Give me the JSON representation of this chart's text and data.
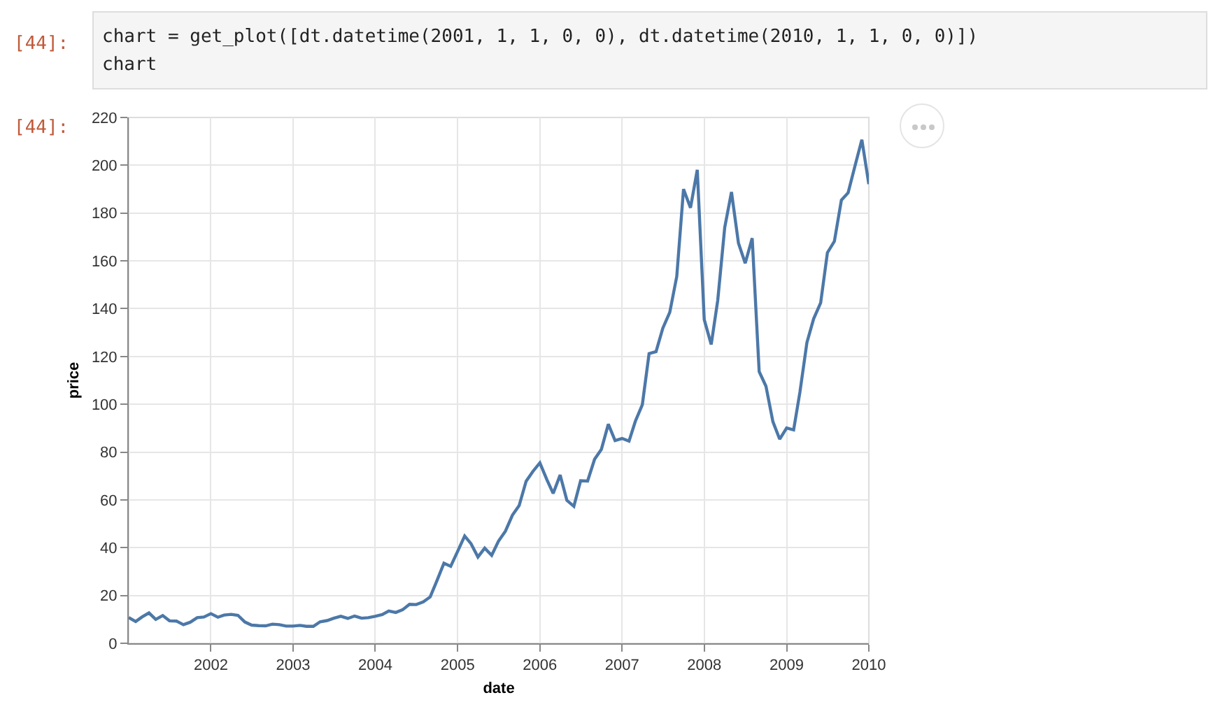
{
  "chart_data": {
    "type": "line",
    "xlabel": "date",
    "ylabel": "price",
    "annotations": [
      "[44]:",
      "chart = get_plot([dt.datetime(2001, 1, 1, 0, 0), dt.datetime(2010, 1, 1, 0, 0)])\nchart",
      "[44]:"
    ],
    "x": [
      "2001-01",
      "2001-02",
      "2001-03",
      "2001-04",
      "2001-05",
      "2001-06",
      "2001-07",
      "2001-08",
      "2001-09",
      "2001-10",
      "2001-11",
      "2001-12",
      "2002-01",
      "2002-02",
      "2002-03",
      "2002-04",
      "2002-05",
      "2002-06",
      "2002-07",
      "2002-08",
      "2002-09",
      "2002-10",
      "2002-11",
      "2002-12",
      "2003-01",
      "2003-02",
      "2003-03",
      "2003-04",
      "2003-05",
      "2003-06",
      "2003-07",
      "2003-08",
      "2003-09",
      "2003-10",
      "2003-11",
      "2003-12",
      "2004-01",
      "2004-02",
      "2004-03",
      "2004-04",
      "2004-05",
      "2004-06",
      "2004-07",
      "2004-08",
      "2004-09",
      "2004-10",
      "2004-11",
      "2004-12",
      "2005-01",
      "2005-02",
      "2005-03",
      "2005-04",
      "2005-05",
      "2005-06",
      "2005-07",
      "2005-08",
      "2005-09",
      "2005-10",
      "2005-11",
      "2005-12",
      "2006-01",
      "2006-02",
      "2006-03",
      "2006-04",
      "2006-05",
      "2006-06",
      "2006-07",
      "2006-08",
      "2006-09",
      "2006-10",
      "2006-11",
      "2006-12",
      "2007-01",
      "2007-02",
      "2007-03",
      "2007-04",
      "2007-05",
      "2007-06",
      "2007-07",
      "2007-08",
      "2007-09",
      "2007-10",
      "2007-11",
      "2007-12",
      "2008-01",
      "2008-02",
      "2008-03",
      "2008-04",
      "2008-05",
      "2008-06",
      "2008-07",
      "2008-08",
      "2008-09",
      "2008-10",
      "2008-11",
      "2008-12",
      "2009-01",
      "2009-02",
      "2009-03",
      "2009-04",
      "2009-05",
      "2009-06",
      "2009-07",
      "2009-08",
      "2009-09",
      "2009-10",
      "2009-11",
      "2009-12",
      "2010-01"
    ],
    "series": [
      {
        "color": "#4c78a8",
        "values": [
          10.8,
          9.1,
          11.0,
          12.7,
          10.0,
          11.6,
          9.4,
          9.3,
          7.8,
          8.8,
          10.7,
          11.0,
          12.4,
          10.9,
          11.8,
          12.1,
          11.7,
          8.9,
          7.6,
          7.4,
          7.3,
          8.0,
          7.8,
          7.2,
          7.2,
          7.5,
          7.1,
          7.1,
          9.0,
          9.5,
          10.5,
          11.3,
          10.4,
          11.4,
          10.5,
          10.7,
          11.3,
          12.0,
          13.5,
          12.9,
          14.0,
          16.3,
          16.2,
          17.3,
          19.4,
          26.2,
          33.5,
          32.2,
          38.5,
          44.9,
          41.7,
          36.1,
          39.8,
          36.8,
          42.7,
          46.9,
          53.6,
          57.6,
          67.8,
          71.9,
          75.5,
          68.5,
          62.7,
          70.4,
          59.8,
          57.3,
          68.0,
          67.9,
          77.0,
          81.1,
          91.7,
          84.8,
          85.7,
          84.6,
          92.9,
          99.8,
          121.2,
          122.0,
          131.8,
          138.5,
          153.5,
          190.0,
          182.2,
          198.1,
          135.4,
          125.0,
          143.5,
          174.0,
          188.8,
          167.4,
          159.0,
          169.5,
          113.7,
          107.6,
          92.7,
          85.4,
          90.1,
          89.3,
          105.1,
          125.8,
          135.8,
          142.4,
          163.4,
          168.2,
          185.4,
          188.5,
          199.9,
          210.7,
          192.1
        ]
      }
    ],
    "xlim": [
      "2001-01-01",
      "2010-01-01"
    ],
    "xticks": [
      "2002",
      "2003",
      "2004",
      "2005",
      "2006",
      "2007",
      "2008",
      "2009",
      "2010"
    ],
    "ylim": [
      0,
      220
    ],
    "yticks": [
      0,
      20,
      40,
      60,
      80,
      100,
      120,
      140,
      160,
      180,
      200,
      220
    ],
    "grid": true,
    "marker": "none",
    "line_style": "solid"
  }
}
